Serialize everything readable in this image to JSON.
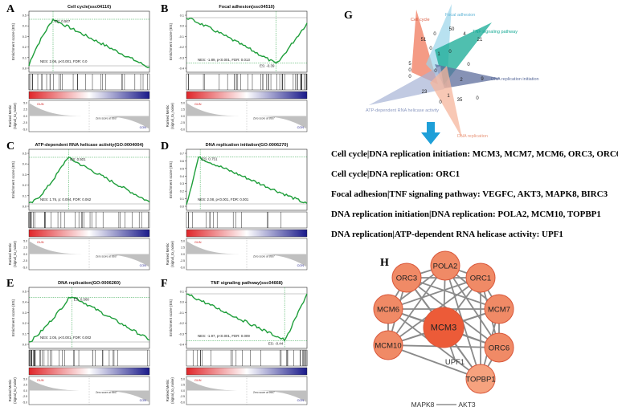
{
  "panels": {
    "A": {
      "letter": "A",
      "title": "Cell cycle(ssc04110)",
      "stats": "NES: 2.06, p<0.001, FDR: 0.0",
      "es_label": "ES: 0.507",
      "yticks": [
        "0.5",
        "0.4",
        "0.3",
        "0.2",
        "0.1",
        "0.0"
      ]
    },
    "B": {
      "letter": "B",
      "title": "Focal adhesion(ssc04510)",
      "stats": "NES: -1.89, p<0.001, FDR: 0.013",
      "es_label": "ES: -0.39",
      "yticks": [
        "0.1",
        "0.0",
        "-0.1",
        "-0.2",
        "-0.3",
        "-0.4"
      ]
    },
    "C": {
      "letter": "C",
      "title": "ATP-dependent RNA helicase activity(GO:0004004)",
      "stats": "NES: 1.76, p: 0.004, FDR: 0.062",
      "es_label": "ES: 0.501",
      "yticks": [
        "0.5",
        "0.4",
        "0.3",
        "0.2",
        "0.1",
        "0.0"
      ]
    },
    "D": {
      "letter": "D",
      "title": "DNA replication initiation(GO:0006270)",
      "stats": "NES: 2.08, p<0.001, FDR: 0.001",
      "es_label": "ES: 0.751",
      "yticks": [
        "0.7",
        "0.6",
        "0.5",
        "0.4",
        "0.3",
        "0.2",
        "0.1",
        "0.0"
      ]
    },
    "E": {
      "letter": "E",
      "title": "DNA replication(GO:0006260)",
      "stats": "NES: 2.05, p<0.001, FDR: 0.002",
      "es_label": "ES: 0.560",
      "yticks": [
        "0.5",
        "0.4",
        "0.3",
        "0.2",
        "0.1",
        "0.0"
      ]
    },
    "F": {
      "letter": "F",
      "title": "TNF signaling pathway(ssc04668)",
      "stats": "NES: -1.97, p<0.001, FDR: 0.009",
      "es_label": "ES: -0.44",
      "yticks": [
        "0.1",
        "0.0",
        "-0.1",
        "-0.2",
        "-0.3",
        "-0.4"
      ]
    }
  },
  "axes": {
    "es_ylabel": "Enrichment score (ES)",
    "metric_ylabel_1": "Ranked Metric",
    "metric_ylabel_2": "(signal_to_noise)",
    "gun_label": "GUN",
    "con_label": "CON",
    "zero_cross": "Zero score at 9567",
    "metric_ticks": [
      "5.0",
      "2.5",
      "0.0",
      "-2.5",
      "-5.0"
    ]
  },
  "venn": {
    "letter": "G",
    "labels": {
      "cell_cycle": "Cell cycle",
      "focal_adhesion": "Focal adhesion",
      "tnf": "TNF signaling pathway",
      "dna_rep_init": "DNA replication initiation",
      "atp": "ATP-dependent RNA helicase activity",
      "dna_rep": "DNA replication"
    },
    "counts": {
      "c51": "51",
      "c0a": "0",
      "c50": "50",
      "c4": "4",
      "c21": "21",
      "c5": "5",
      "c0b": "0",
      "c0c": "0",
      "c0d": "0",
      "c1a": "1",
      "c0e": "0",
      "c0f": "0",
      "c0g": "0",
      "c9": "9",
      "c23": "23",
      "c1b": "1",
      "c35": "35",
      "c0h": "0",
      "c0i": "0",
      "c2": "2"
    },
    "colors": {
      "cell_cycle": "#f07a5c",
      "focal_adhesion": "#9ad4ea",
      "tnf": "#14a994",
      "dna_rep_init": "#5d6e9c",
      "atp": "#a7b4d6",
      "dna_rep": "#f5b59c"
    }
  },
  "genes": {
    "line1": "Cell cycle|DNA replication initiation: MCM3, MCM7, MCM6, ORC3, ORC6",
    "line2": "Cell cycle|DNA replication: ORC1",
    "line3": "Focal adhesion|TNF signaling pathway: VEGFC, AKT3, MAPK8, BIRC3",
    "line4": "DNA replication initiation|DNA replication: POLA2, MCM10, TOPBP1",
    "line5": "DNA replication|ATP-dependent RNA helicase activity: UPF1"
  },
  "network": {
    "letter": "H",
    "nodes": {
      "pola2": "POLA2",
      "orc3": "ORC3",
      "orc1": "ORC1",
      "mcm6": "MCM6",
      "mcm7": "MCM7",
      "mcm3": "MCM3",
      "mcm10": "MCM10",
      "orc6": "ORC6",
      "upf1": "UPF1",
      "topbp1": "TOPBP1",
      "mapk8": "MAPK8",
      "akt3": "AKT3"
    },
    "colors": {
      "node": "#f08a66",
      "hub": "#ec5b38",
      "topbp1": "#f6a27e",
      "stroke": "#d9573a",
      "edge": "#8a8a8a"
    }
  }
}
